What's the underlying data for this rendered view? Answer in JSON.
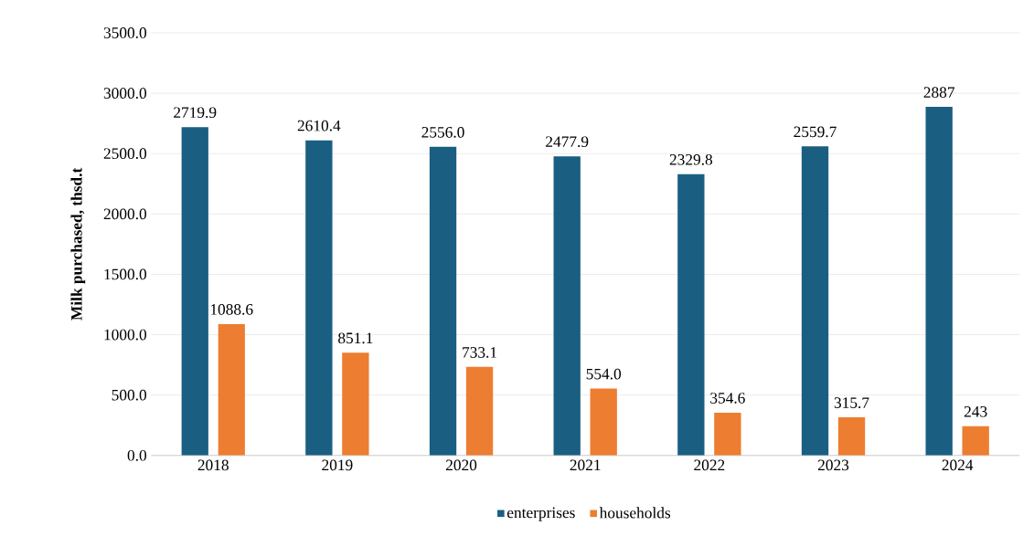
{
  "chart_data": {
    "type": "bar",
    "ylabel": "Milk purchased, thsd.t",
    "categories": [
      "2018",
      "2019",
      "2020",
      "2021",
      "2022",
      "2023",
      "2024"
    ],
    "series": [
      {
        "name": "enterprises",
        "color": "#1a5f82",
        "values": [
          2719.9,
          2610.4,
          2556.0,
          2477.9,
          2329.8,
          2559.7,
          2887
        ],
        "value_labels": [
          "2719.9",
          "2610.4",
          "2556.0",
          "2477.9",
          "2329.8",
          "2559.7",
          "2887"
        ]
      },
      {
        "name": "households",
        "color": "#ed7d31",
        "values": [
          1088.6,
          851.1,
          733.1,
          554.0,
          354.6,
          315.7,
          243
        ],
        "value_labels": [
          "1088.6",
          "851.1",
          "733.1",
          "554.0",
          "354.6",
          "315.7",
          "243"
        ]
      }
    ],
    "ylim": [
      0,
      3500
    ],
    "yticks": [
      {
        "value": 0,
        "label": "0.0"
      },
      {
        "value": 500,
        "label": "500.0"
      },
      {
        "value": 1000,
        "label": "1000.0"
      },
      {
        "value": 1500,
        "label": "1500.0"
      },
      {
        "value": 2000,
        "label": "2000.0"
      },
      {
        "value": 2500,
        "label": "2500.0"
      },
      {
        "value": 3000,
        "label": "3000.0"
      },
      {
        "value": 3500,
        "label": "3500.0"
      }
    ],
    "grid": "y",
    "legend": "bottom"
  }
}
